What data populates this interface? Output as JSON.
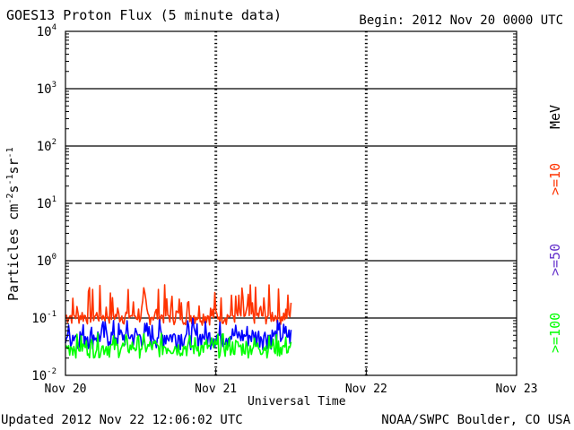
{
  "header": {
    "title": "GOES13 Proton Flux (5 minute data)",
    "begin": "Begin: 2012 Nov 20 0000 UTC"
  },
  "footer": {
    "updated": "Updated 2012 Nov 22 12:06:02 UTC",
    "credit": "NOAA/SWPC Boulder, CO USA"
  },
  "colors": {
    "ge10": "#ff3300",
    "ge50": "#0000ff",
    "ge100": "#00ff00",
    "ge50_label": "#6633cc",
    "axis": "#000000",
    "background": "#ffffff"
  },
  "chart_data": {
    "type": "line",
    "title": "GOES13 Proton Flux (5 minute data)",
    "xlabel": "Universal Time",
    "ylabel_main": "Particles cm",
    "ylabel_sup1": "-2",
    "ylabel_mid1": "s",
    "ylabel_sup2": "-1",
    "ylabel_mid2": "sr",
    "ylabel_sup3": "-1",
    "yscale": "log",
    "ylim": [
      0.01,
      10000
    ],
    "xlim_days": [
      0,
      3
    ],
    "data_end_day": 1.5,
    "x_ticks": [
      {
        "day": 0,
        "label": "Nov 20"
      },
      {
        "day": 1,
        "label": "Nov 21"
      },
      {
        "day": 2,
        "label": "Nov 22"
      },
      {
        "day": 3,
        "label": "Nov 23"
      }
    ],
    "y_ticks": [
      {
        "exp": -2,
        "base": "10",
        "sup": "-2"
      },
      {
        "exp": -1,
        "base": "10",
        "sup": "-1"
      },
      {
        "exp": 0,
        "base": "10",
        "sup": "0"
      },
      {
        "exp": 1,
        "base": "10",
        "sup": "1"
      },
      {
        "exp": 2,
        "base": "10",
        "sup": "2"
      },
      {
        "exp": 3,
        "base": "10",
        "sup": "3"
      },
      {
        "exp": 4,
        "base": "10",
        "sup": "4"
      }
    ],
    "reference_lines": [
      {
        "value": 0.1,
        "style": "solid"
      },
      {
        "value": 1,
        "style": "solid"
      },
      {
        "value": 10,
        "style": "dashed"
      },
      {
        "value": 100,
        "style": "solid"
      },
      {
        "value": 1000,
        "style": "solid"
      }
    ],
    "series": [
      {
        "name": ">=10",
        "unit": "MeV",
        "color": "#ff3300",
        "median": 0.11,
        "min": 0.075,
        "max": 0.4
      },
      {
        "name": ">=50",
        "color": "#0000ff",
        "median": 0.05,
        "min": 0.028,
        "max": 0.1
      },
      {
        "name": ">=100",
        "color": "#00ff00",
        "median": 0.032,
        "min": 0.02,
        "max": 0.055
      }
    ],
    "legend": {
      "placement": "right",
      "unit_label": "MeV",
      "items": [
        ">=10",
        ">=50",
        ">=100"
      ]
    }
  }
}
